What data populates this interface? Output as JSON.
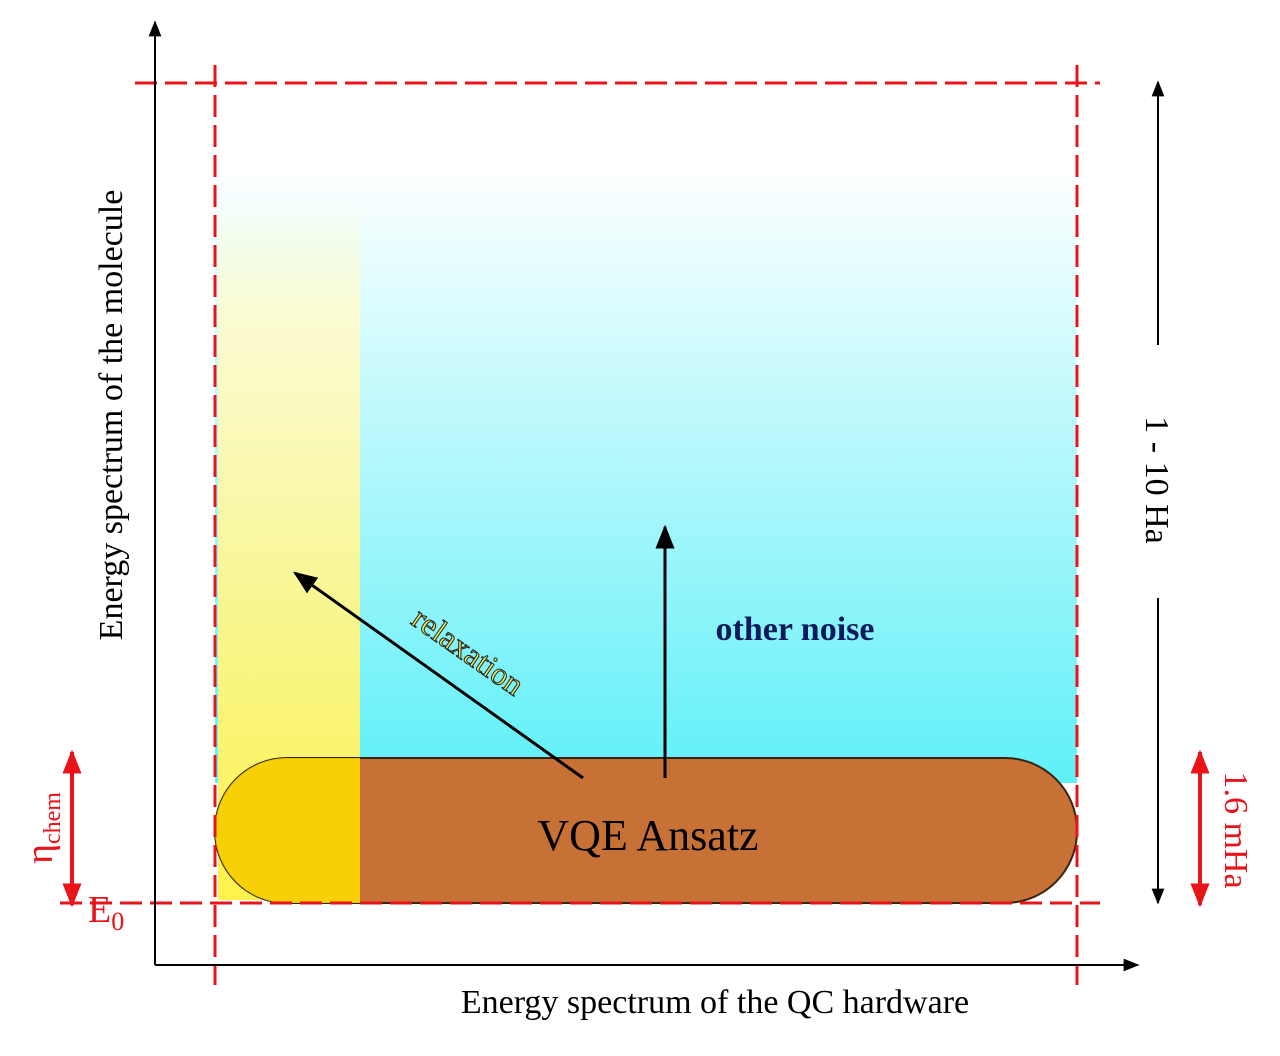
{
  "axes": {
    "y_label": "Energy spectrum of the molecule",
    "x_label": "Energy spectrum of the QC hardware"
  },
  "ansatz": {
    "label": "VQE Ansatz"
  },
  "arrows": {
    "relaxation": "relaxation",
    "other_noise": "other noise"
  },
  "scale": {
    "range": "1 - 10 Ha",
    "accuracy": "1.6 mHa"
  },
  "levels": {
    "eta": "η",
    "eta_sub": "chem",
    "e": "E",
    "e_sub": "0"
  }
}
